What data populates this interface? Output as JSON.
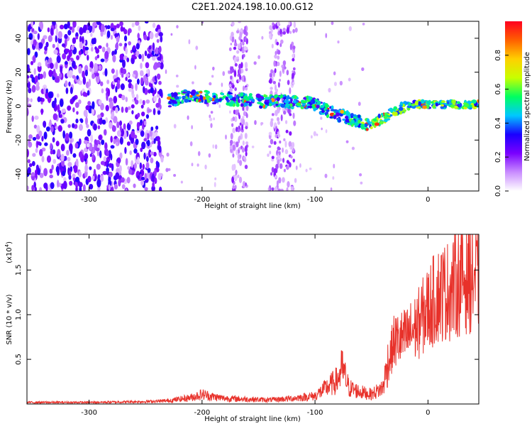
{
  "figure": {
    "title": "C2E1.2024.198.10.00.G12"
  },
  "chart_data": [
    {
      "type": "heatmap",
      "xlabel": "Height of straight line (km)",
      "ylabel": "Frequency (Hz)",
      "xlim": [
        -355,
        45
      ],
      "ylim": [
        -50,
        50
      ],
      "xticks": [
        -300,
        -200,
        -100,
        0
      ],
      "yticks": [
        -40,
        -20,
        0,
        20,
        40
      ],
      "colorbar": {
        "label": "Normalized spectral amplitude",
        "range": [
          0,
          1
        ],
        "ticks": [
          "0.0",
          "0.2",
          "0.4",
          "0.6",
          "0.8"
        ],
        "colormap": [
          "#ffffff",
          "#c98cff",
          "#7a00ff",
          "#1a00ff",
          "#00c8ff",
          "#00ff60",
          "#c8ff00",
          "#ffd000",
          "#ff6000",
          "#ff0020"
        ]
      },
      "ridge": {
        "x": [
          -230,
          -210,
          -190,
          -170,
          -150,
          -130,
          -110,
          -100,
          -90,
          -80,
          -70,
          -60,
          -55,
          -50,
          -40,
          -30,
          -20,
          -10,
          0,
          10,
          20,
          30,
          45
        ],
        "y": [
          3,
          6,
          5,
          4,
          3,
          3,
          2,
          1,
          -2,
          -5,
          -7,
          -9,
          -11,
          -10,
          -7,
          -4,
          0,
          1,
          1,
          1,
          1,
          1,
          1
        ]
      },
      "noise_region_x": [
        -355,
        -235
      ],
      "stripe_regions_x": [
        [
          -175,
          -160
        ],
        [
          -140,
          -118
        ]
      ]
    },
    {
      "type": "line",
      "xlabel": "Height of straight line (km)",
      "ylabel": "SNR (10 * v/v)",
      "yscale_label": "(x10",
      "yscale_exp": "4",
      "yscale_close": ")",
      "xlim": [
        -355,
        45
      ],
      "ylim": [
        0,
        1.9
      ],
      "xticks": [
        -300,
        -200,
        -100,
        0
      ],
      "yticks": [
        "0.5",
        "1.0",
        "1.5"
      ],
      "color": "#e8312a",
      "series": [
        {
          "x": [
            -355,
            -300,
            -250,
            -230,
            -210,
            -200,
            -190,
            -180,
            -160,
            -140,
            -120,
            -100,
            -90,
            -80,
            -76,
            -70,
            -60,
            -50,
            -40,
            -35,
            -30,
            -20,
            -10,
            0,
            10,
            20,
            30,
            40,
            45
          ],
          "y": [
            0.02,
            0.02,
            0.03,
            0.04,
            0.08,
            0.12,
            0.09,
            0.07,
            0.06,
            0.05,
            0.07,
            0.1,
            0.2,
            0.3,
            0.45,
            0.2,
            0.15,
            0.12,
            0.2,
            0.55,
            0.85,
            0.9,
            1.05,
            1.3,
            1.5,
            1.55,
            1.7,
            1.75,
            1.65
          ]
        }
      ]
    }
  ]
}
